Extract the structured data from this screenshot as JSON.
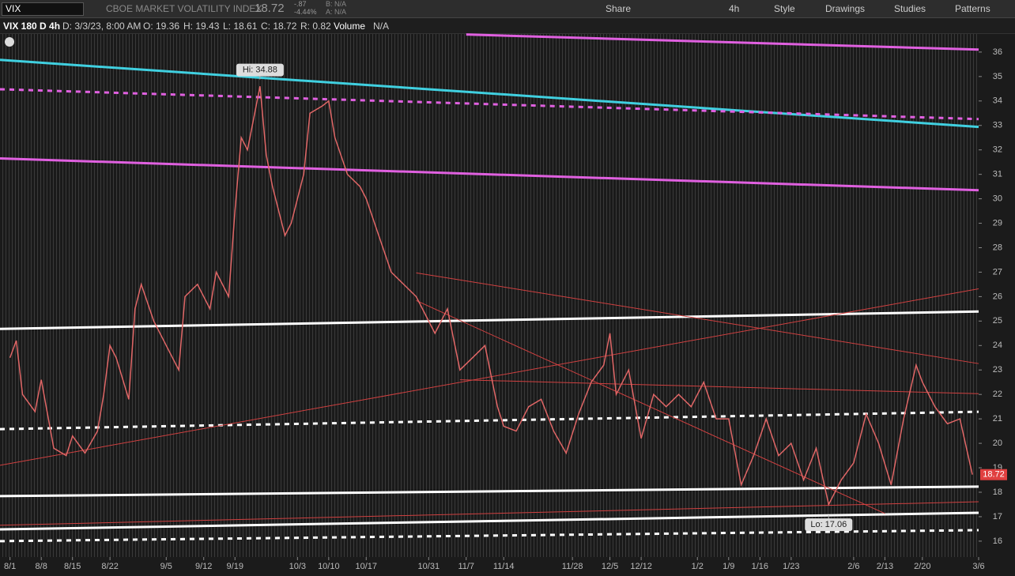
{
  "toolbar": {
    "symbol": "VIX",
    "description": "CBOE MARKET VOLATILITY INDEX",
    "last": "18.72",
    "change": "-.87",
    "change_pct": "-4.44%",
    "bid": "B: N/A",
    "ask": "A: N/A",
    "buttons": [
      "Share",
      "4h",
      "Style",
      "Drawings",
      "Studies",
      "Patterns"
    ]
  },
  "info_bar": {
    "items": [
      "VIX 180 D 4h",
      "D: 3/3/23, 8:00 AM",
      "O: 19.36",
      "H: 19.43",
      "L: 18.61",
      "C: 18.72",
      "R: 0.82",
      "Volume",
      "N/A"
    ]
  },
  "chart_data": {
    "type": "line",
    "color": "#e06666",
    "x": [
      0,
      1,
      2,
      4,
      5,
      7,
      9,
      10,
      12,
      14,
      15,
      16,
      17,
      19,
      20,
      21,
      23,
      25,
      27,
      28,
      30,
      32,
      33,
      35,
      36,
      37,
      38,
      40,
      41,
      42,
      44,
      45,
      47,
      48,
      50,
      51,
      52,
      54,
      56,
      57,
      59,
      61,
      63,
      65,
      66,
      68,
      70,
      72,
      74,
      76,
      78,
      79,
      81,
      83,
      85,
      87,
      89,
      91,
      93,
      95,
      96,
      97,
      99,
      101,
      103,
      105,
      107,
      109,
      111,
      113,
      115,
      117,
      119,
      121,
      123,
      125,
      127,
      129,
      131,
      133,
      135,
      137,
      139,
      141,
      143,
      145,
      146,
      148,
      150,
      152,
      154
    ],
    "values": [
      23.5,
      24.2,
      22,
      21.3,
      22.6,
      19.8,
      19.5,
      20.3,
      19.6,
      20.5,
      22,
      24,
      23.5,
      21.8,
      25.5,
      26.5,
      25,
      24,
      23,
      26,
      26.5,
      25.5,
      27,
      26,
      29.5,
      32.5,
      32,
      34.6,
      31.8,
      30.5,
      28.5,
      29,
      31,
      33.5,
      33.8,
      34,
      32.5,
      31,
      30.5,
      30,
      28.5,
      27,
      26.5,
      26,
      25.5,
      24.5,
      25.5,
      23,
      23.5,
      24,
      21.5,
      20.7,
      20.5,
      21.5,
      21.8,
      20.5,
      19.6,
      21.2,
      22.5,
      23.2,
      24.5,
      22,
      23,
      20.2,
      22,
      21.5,
      22,
      21.5,
      22.5,
      21,
      21,
      18.3,
      19.5,
      21,
      19.5,
      20,
      18.5,
      19.8,
      17.5,
      18.5,
      19.2,
      21.2,
      20,
      18.3,
      21,
      23.2,
      22.5,
      21.5,
      20.8,
      21,
      18.72
    ],
    "xlim": [
      -1.6,
      155
    ],
    "ylim": [
      15.35,
      36.74
    ],
    "yticks": [
      16,
      17,
      18,
      19,
      20,
      21,
      22,
      23,
      24,
      25,
      26,
      27,
      28,
      29,
      30,
      31,
      32,
      33,
      34,
      35,
      36
    ],
    "xticks": [
      {
        "value": 0,
        "label": "8/1"
      },
      {
        "value": 5,
        "label": "8/8"
      },
      {
        "value": 10,
        "label": "8/15"
      },
      {
        "value": 16,
        "label": "8/22"
      },
      {
        "value": 25,
        "label": "9/5"
      },
      {
        "value": 31,
        "label": "9/12"
      },
      {
        "value": 36,
        "label": "9/19"
      },
      {
        "value": 46,
        "label": "10/3"
      },
      {
        "value": 51,
        "label": "10/10"
      },
      {
        "value": 57,
        "label": "10/17"
      },
      {
        "value": 67,
        "label": "10/31"
      },
      {
        "value": 73,
        "label": "11/7"
      },
      {
        "value": 79,
        "label": "11/14"
      },
      {
        "value": 90,
        "label": "11/28"
      },
      {
        "value": 96,
        "label": "12/5"
      },
      {
        "value": 101,
        "label": "12/12"
      },
      {
        "value": 110,
        "label": "1/2"
      },
      {
        "value": 115,
        "label": "1/9"
      },
      {
        "value": 120,
        "label": "1/16"
      },
      {
        "value": 125,
        "label": "1/23"
      },
      {
        "value": 135,
        "label": "2/6"
      },
      {
        "value": 140,
        "label": "2/13"
      },
      {
        "value": 146,
        "label": "2/20"
      },
      {
        "value": 155,
        "label": "3/6"
      }
    ],
    "last_price": 18.72,
    "annotations": [
      {
        "label": "Hi: 34.88",
        "x": 40,
        "y": 34.88
      },
      {
        "label": "Lo: 17.06",
        "x": 131,
        "y": 17.06
      }
    ],
    "trendlines": [
      {
        "color": "#e060e0",
        "dashed": false,
        "width": 3,
        "x": [
          73,
          155
        ],
        "values": [
          36.72,
          36.1
        ]
      },
      {
        "color": "#40d0e0",
        "dashed": false,
        "width": 3,
        "x": [
          -1.6,
          155
        ],
        "values": [
          35.68,
          32.94
        ]
      },
      {
        "color": "#e060e0",
        "dashed": true,
        "width": 3,
        "x": [
          -1.6,
          155
        ],
        "values": [
          34.48,
          33.26
        ]
      },
      {
        "color": "#e060e0",
        "dashed": false,
        "width": 3,
        "x": [
          -1.6,
          155
        ],
        "values": [
          31.65,
          30.35
        ]
      },
      {
        "color": "#ffffff",
        "dashed": false,
        "width": 3,
        "x": [
          -1.6,
          155
        ],
        "values": [
          24.68,
          25.39
        ]
      },
      {
        "color": "#ffffff",
        "dashed": true,
        "width": 3,
        "x": [
          -1.6,
          155
        ],
        "values": [
          20.58,
          21.29
        ]
      },
      {
        "color": "#ffffff",
        "dashed": false,
        "width": 3,
        "x": [
          -1.6,
          155
        ],
        "values": [
          17.84,
          18.23
        ]
      },
      {
        "color": "#ffffff",
        "dashed": false,
        "width": 3,
        "x": [
          -1.6,
          155
        ],
        "values": [
          16.48,
          17.16
        ]
      },
      {
        "color": "#ffffff",
        "dashed": true,
        "width": 3,
        "x": [
          -1.6,
          155
        ],
        "values": [
          16,
          16.45
        ]
      },
      {
        "color": "#d04040",
        "dashed": false,
        "width": 1,
        "x": [
          -1.6,
          155
        ],
        "values": [
          19.1,
          26.32
        ]
      },
      {
        "color": "#d04040",
        "dashed": false,
        "width": 1,
        "x": [
          65,
          155
        ],
        "values": [
          26.97,
          23.26
        ]
      },
      {
        "color": "#d04040",
        "dashed": false,
        "width": 1,
        "x": [
          -1.6,
          155
        ],
        "values": [
          16.65,
          17.61
        ]
      },
      {
        "color": "#d04040",
        "dashed": false,
        "width": 1,
        "x": [
          72,
          155
        ],
        "values": [
          22.6,
          22.03
        ]
      },
      {
        "color": "#d04040",
        "dashed": false,
        "width": 1,
        "x": [
          65,
          140
        ],
        "values": [
          25.84,
          17.13
        ]
      }
    ]
  }
}
